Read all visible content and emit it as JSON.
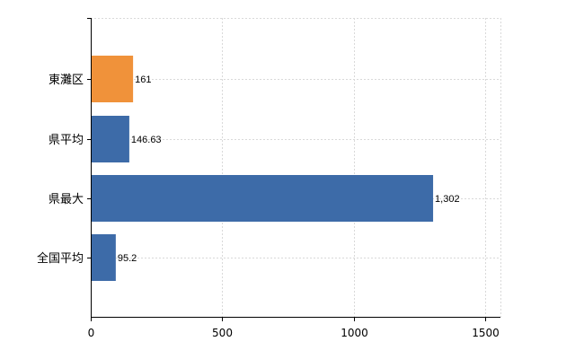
{
  "chart_data": {
    "type": "bar",
    "orientation": "horizontal",
    "categories": [
      "東灘区",
      "県平均",
      "県最大",
      "全国平均"
    ],
    "values": [
      161,
      146.63,
      1302,
      95.2
    ],
    "value_labels": [
      "161",
      "146.63",
      "1,302",
      "95.2"
    ],
    "bar_colors": [
      "#f0923a",
      "#3d6ba8",
      "#3d6ba8",
      "#3d6ba8"
    ],
    "xlim": [
      0,
      1500
    ],
    "xticks": [
      0,
      500,
      1000,
      1500
    ],
    "xtick_labels": [
      "0",
      "500",
      "1000",
      "1500"
    ],
    "grid": true,
    "legend": "none"
  }
}
